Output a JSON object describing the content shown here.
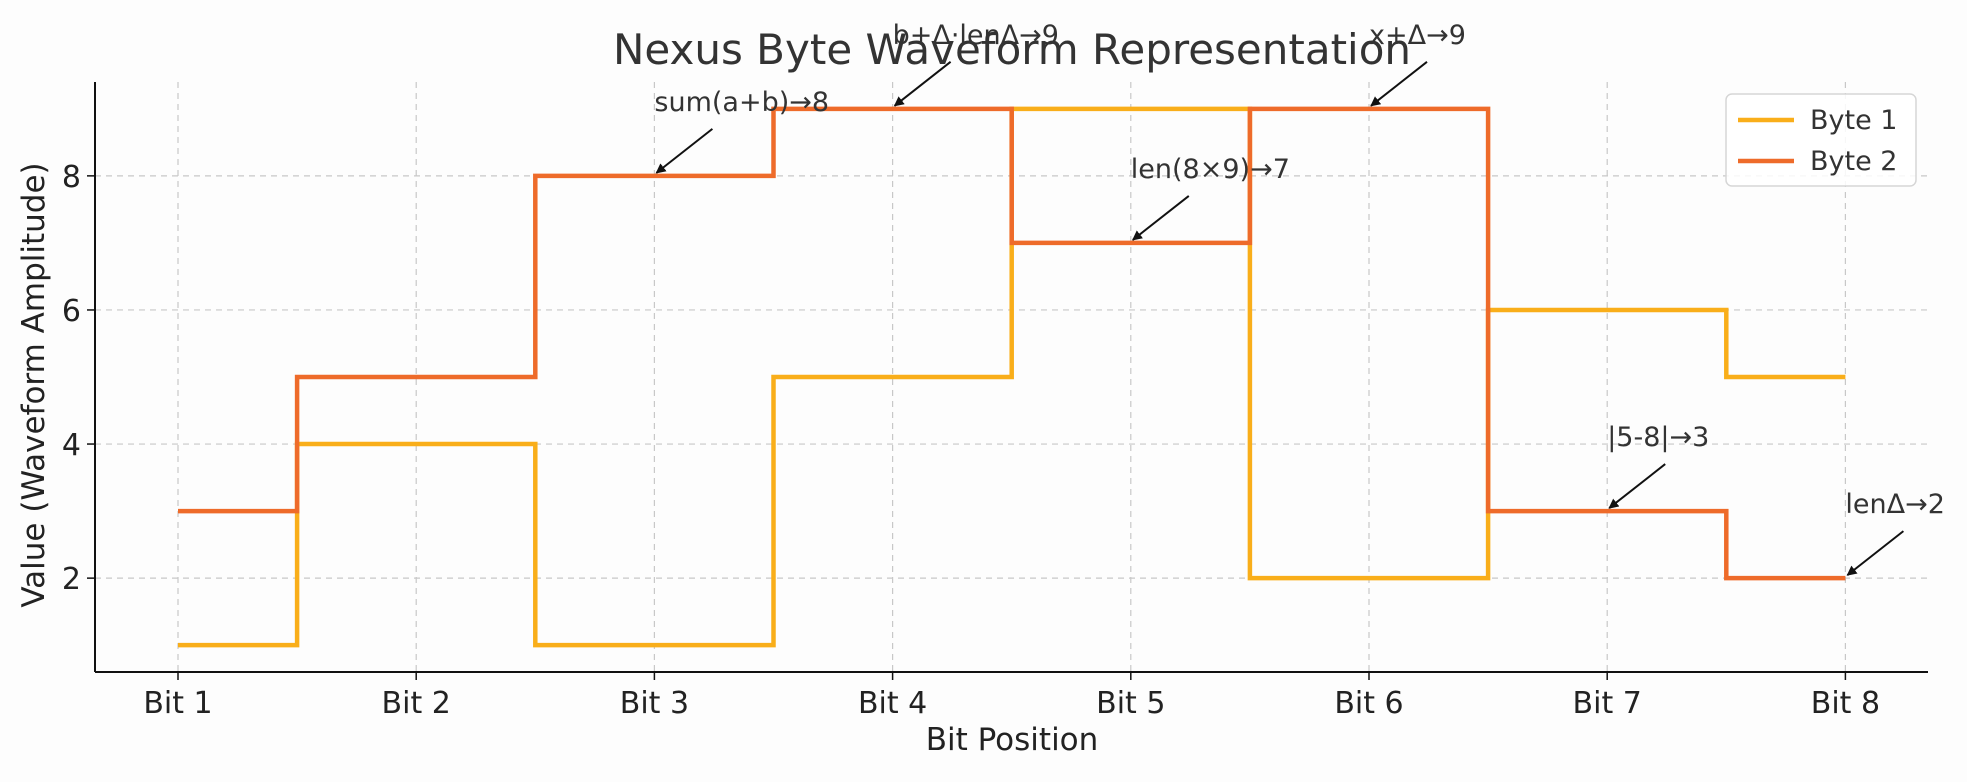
{
  "chart_data": {
    "type": "line",
    "step": "mid",
    "title": "Nexus Byte Waveform Representation",
    "xlabel": "Bit Position",
    "ylabel": "Value (Waveform Amplitude)",
    "categories": [
      "Bit 1",
      "Bit 2",
      "Bit 3",
      "Bit 4",
      "Bit 5",
      "Bit 6",
      "Bit 7",
      "Bit 8"
    ],
    "ylim": [
      0.6,
      9.4
    ],
    "yticks": [
      2,
      4,
      6,
      8
    ],
    "grid": true,
    "legend_position": "top-right",
    "series": [
      {
        "name": "Byte 1",
        "color": "#F9AE1A",
        "values": [
          1,
          4,
          1,
          5,
          9,
          2,
          6,
          5
        ]
      },
      {
        "name": "Byte 2",
        "color": "#EE6B2A",
        "values": [
          3,
          5,
          8,
          9,
          7,
          9,
          3,
          2
        ]
      }
    ],
    "annotations": [
      {
        "text": "sum(a+b)→8",
        "x": 2,
        "y": 8
      },
      {
        "text": "b+Δ·lenΔ→9",
        "x": 3,
        "y": 9
      },
      {
        "text": "len(8×9)→7",
        "x": 4,
        "y": 7
      },
      {
        "text": "x+Δ→9",
        "x": 5,
        "y": 9
      },
      {
        "text": "|5-8|→3",
        "x": 6,
        "y": 3
      },
      {
        "text": "lenΔ→2",
        "x": 7,
        "y": 2
      }
    ]
  }
}
